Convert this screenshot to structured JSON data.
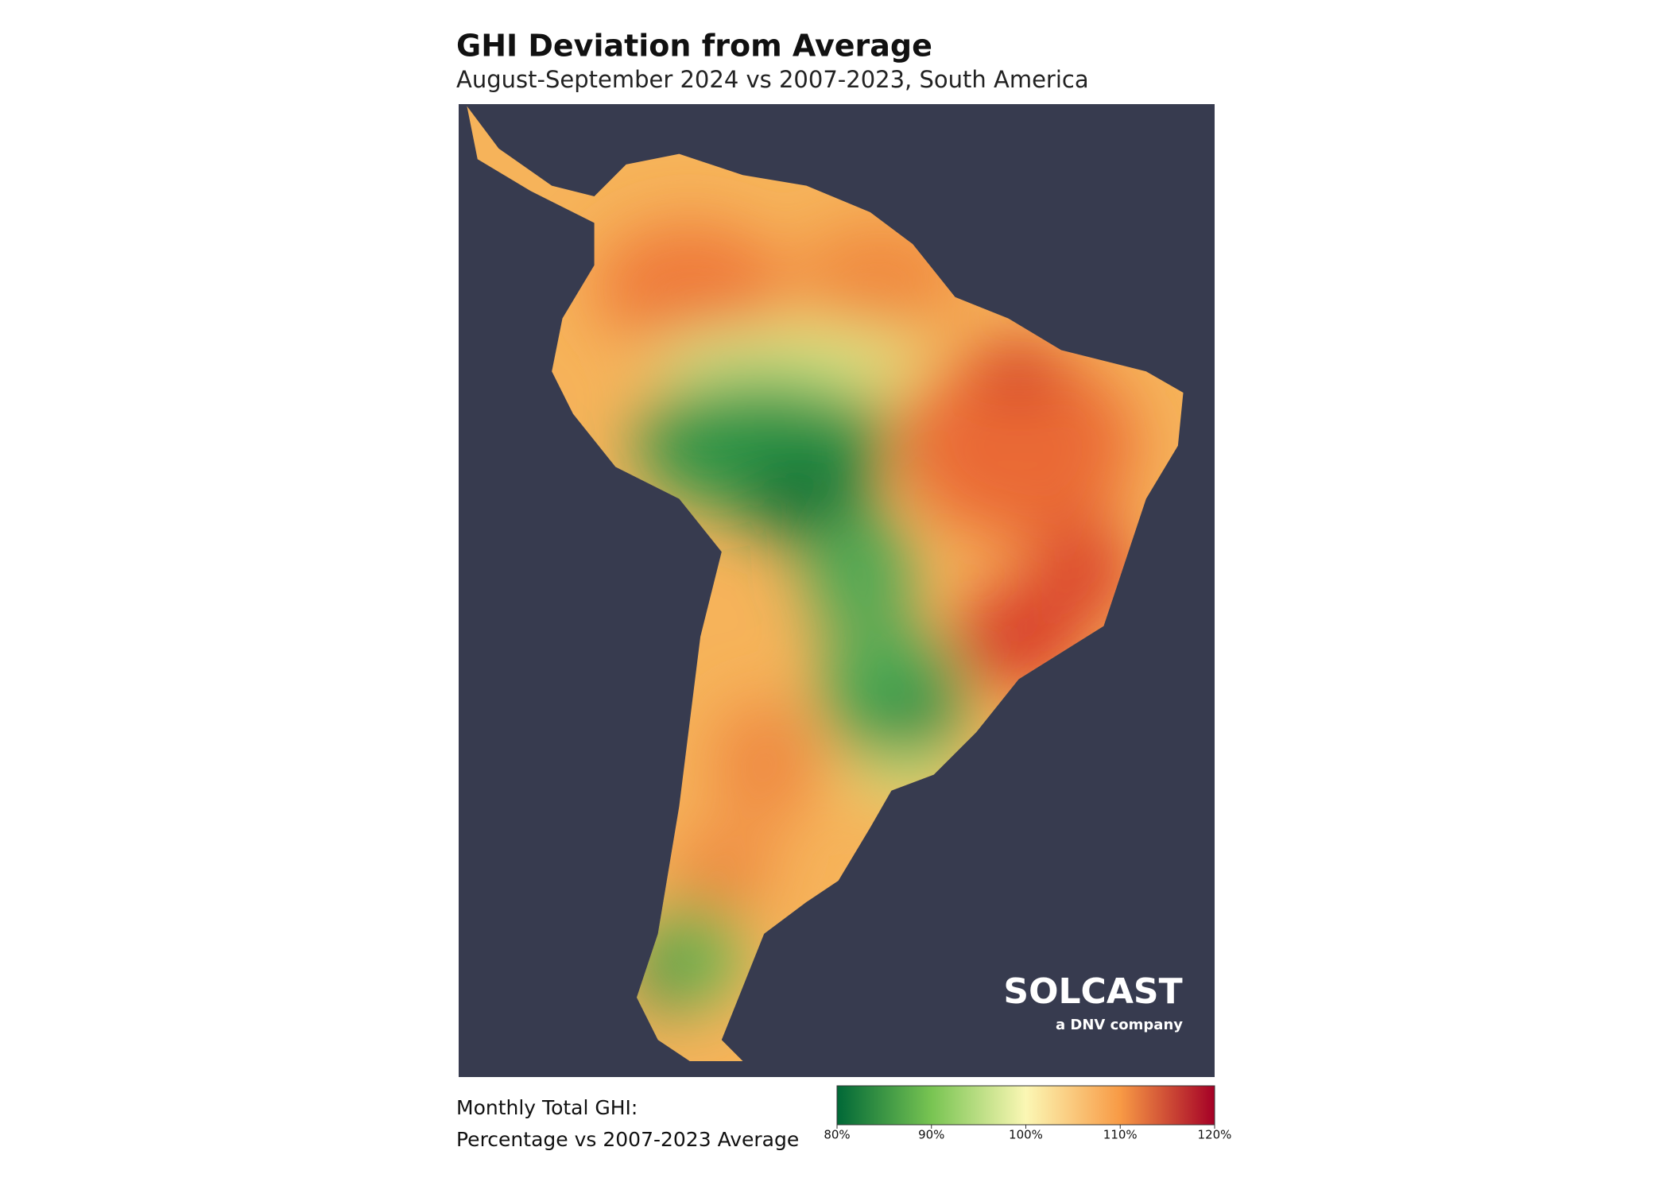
{
  "header": {
    "title": "GHI Deviation from Average",
    "subtitle": "August-September 2024 vs 2007-2023, South America"
  },
  "logo": {
    "name": "SOLCAST",
    "tagline": "a DNV company"
  },
  "legend": {
    "title_lines": [
      "Monthly Total GHI:",
      "Percentage vs 2007-2023 Average"
    ],
    "range": [
      80,
      120
    ],
    "colors": [
      "#006837",
      "#78c452",
      "#fbf7b4",
      "#f89a45",
      "#a50026"
    ],
    "ticks": [
      {
        "value": 80,
        "label": "80%"
      },
      {
        "value": 90,
        "label": "90%"
      },
      {
        "value": 100,
        "label": "100%"
      },
      {
        "value": 110,
        "label": "110%"
      },
      {
        "value": 120,
        "label": "120%"
      }
    ]
  }
}
